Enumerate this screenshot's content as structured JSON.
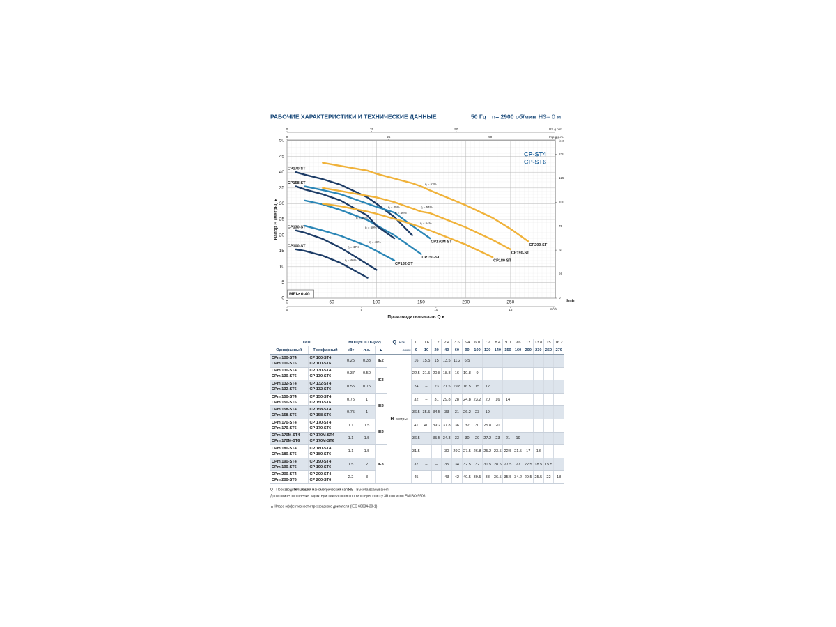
{
  "header": {
    "title": "РАБОЧИЕ ХАРАКТЕРИСТИКИ И ТЕХНИЧЕСКИЕ ДАННЫЕ",
    "freq": "50 Гц",
    "speed": "n= 2900 об/мин",
    "hs": "HS= 0 м"
  },
  "chart_data": {
    "type": "line",
    "badges": [
      "CP-ST4",
      "CP-ST6"
    ],
    "mei": "MEI≥ 0.40",
    "xlabel": "Производительность Q ▸",
    "ylabel": "Напор H (метры) ▸",
    "x_unit": "l/min",
    "xlim": [
      0,
      300
    ],
    "xticks": [
      0,
      50,
      100,
      150,
      200,
      250
    ],
    "ylim": [
      0,
      50
    ],
    "yticks": [
      0,
      5,
      10,
      15,
      20,
      25,
      30,
      35,
      40,
      45,
      50
    ],
    "y2_unit": "feet",
    "y2lim": [
      0,
      164.04
    ],
    "y2ticks": [
      0,
      25,
      50,
      75,
      100,
      125,
      150
    ],
    "top_axes": [
      {
        "unit": "US g.p.m.",
        "lim": [
          0,
          79.25
        ],
        "ticks": [
          0,
          25,
          50
        ]
      },
      {
        "unit": "Imp g.p.m.",
        "lim": [
          0,
          65.99
        ],
        "ticks": [
          0,
          25,
          50
        ]
      }
    ],
    "bottom_axis2": {
      "unit": "m³/h",
      "lim": [
        0,
        18
      ],
      "ticks": [
        0,
        5,
        10,
        15
      ]
    },
    "grid": true,
    "x": [
      10,
      20,
      40,
      60,
      90,
      100,
      120,
      140,
      150,
      160,
      200,
      230,
      250,
      270
    ],
    "series": [
      {
        "name": "CP100-ST",
        "color": "#1d3c66",
        "values": [
          15.5,
          15,
          13.5,
          11.2,
          6.5,
          null,
          null,
          null,
          null,
          null,
          null,
          null,
          null,
          null
        ]
      },
      {
        "name": "CP130-ST",
        "color": "#1d3c66",
        "values": [
          21.5,
          20.8,
          18.8,
          16,
          10.8,
          9,
          null,
          null,
          null,
          null,
          null,
          null,
          null,
          null
        ]
      },
      {
        "name": "CP132-ST",
        "color": "#2b86b6",
        "values": [
          null,
          23,
          21.5,
          19.8,
          16.5,
          15,
          12,
          null,
          null,
          null,
          null,
          null,
          null,
          null
        ]
      },
      {
        "name": "CP150-ST",
        "color": "#2b86b6",
        "values": [
          null,
          31,
          29.8,
          28,
          24.8,
          23.2,
          20,
          16,
          14,
          null,
          null,
          null,
          null,
          null
        ]
      },
      {
        "name": "CP158-ST",
        "color": "#1d3c66",
        "values": [
          35.5,
          34.5,
          33,
          31,
          26.2,
          23,
          19,
          null,
          null,
          null,
          null,
          null,
          null,
          null
        ]
      },
      {
        "name": "CP170-ST",
        "color": "#1d3c66",
        "values": [
          40,
          39.2,
          37.8,
          36,
          32,
          30,
          25.8,
          20,
          null,
          null,
          null,
          null,
          null,
          null
        ]
      },
      {
        "name": "CP170M-ST",
        "color": "#2b86b6",
        "values": [
          null,
          35.5,
          34.3,
          33,
          30,
          29,
          27.2,
          23,
          21,
          19,
          null,
          null,
          null,
          null
        ]
      },
      {
        "name": "CP180-ST",
        "color": "#f0b23a",
        "values": [
          null,
          null,
          30,
          29.2,
          27.5,
          26.8,
          25.2,
          23.5,
          22.5,
          21.5,
          17,
          13,
          null,
          null
        ]
      },
      {
        "name": "CP190-ST",
        "color": "#f0b23a",
        "values": [
          null,
          null,
          35,
          34,
          32.5,
          32,
          30.5,
          28.5,
          27.5,
          27,
          22.5,
          18.5,
          15.5,
          null
        ]
      },
      {
        "name": "CP200-ST",
        "color": "#f0b23a",
        "values": [
          null,
          null,
          43,
          42,
          40.5,
          39.5,
          38,
          36.5,
          35.5,
          34.2,
          29.5,
          25.5,
          22,
          18
        ]
      }
    ],
    "annotations": [
      "η = 53%",
      "η = 54%",
      "η = 54%",
      "η = 45%",
      "η = 46%",
      "η = 46%",
      "η = 50%",
      "η = 48%",
      "η = 47%",
      "η = 46%"
    ]
  },
  "table": {
    "header": {
      "type": "ТИП",
      "power": "МОЩНОСТЬ (P2)",
      "q": "Q",
      "m3h": "м³/ч",
      "lmin": "л/мин",
      "single": "Однофазный",
      "three": "Трехфазный",
      "kw": "кВт",
      "hp": "л.с.",
      "cls": "▲",
      "h": "H",
      "h_unit": "метры"
    },
    "flow_m3h": [
      "0",
      "0.6",
      "1.2",
      "2.4",
      "3.6",
      "5.4",
      "6.0",
      "7.2",
      "8.4",
      "9.0",
      "9.6",
      "12",
      "13.8",
      "15",
      "16.2"
    ],
    "flow_lmin": [
      "0",
      "10",
      "20",
      "40",
      "60",
      "90",
      "100",
      "120",
      "140",
      "150",
      "160",
      "200",
      "230",
      "250",
      "270"
    ],
    "classes": [
      "IE2",
      "IE3",
      "IE3",
      "IE3",
      "IE3"
    ],
    "rows": [
      {
        "single": [
          "CPm 100-ST4",
          "CPm 100-ST6"
        ],
        "three": [
          "CP 100-ST4",
          "CP 100-ST6"
        ],
        "kw": "0.25",
        "hp": "0.33",
        "head": [
          "16",
          "15.5",
          "15",
          "13.5",
          "11.2",
          "6.5",
          null,
          null,
          null,
          null,
          null,
          null,
          null,
          null,
          null
        ]
      },
      {
        "single": [
          "CPm 130-ST4",
          "CPm 130-ST6"
        ],
        "three": [
          "CP 130-ST4",
          "CP 130-ST6"
        ],
        "kw": "0.37",
        "hp": "0.50",
        "head": [
          "22.5",
          "21.5",
          "20.8",
          "18.8",
          "16",
          "10.8",
          "9",
          null,
          null,
          null,
          null,
          null,
          null,
          null,
          null
        ]
      },
      {
        "single": [
          "CPm 132-ST4",
          "CPm 132-ST6"
        ],
        "three": [
          "CP 132-ST4",
          "CP 132-ST6"
        ],
        "kw": "0.55",
        "hp": "0.75",
        "head": [
          "24",
          "–",
          "23",
          "21.5",
          "19.8",
          "16.5",
          "15",
          "12",
          null,
          null,
          null,
          null,
          null,
          null,
          null
        ]
      },
      {
        "single": [
          "CPm 150-ST4",
          "CPm 150-ST6"
        ],
        "three": [
          "CP 150-ST4",
          "CP 150-ST6"
        ],
        "kw": "0.75",
        "hp": "1",
        "head": [
          "32",
          "–",
          "31",
          "29.8",
          "28",
          "24.8",
          "23.2",
          "20",
          "16",
          "14",
          null,
          null,
          null,
          null,
          null
        ]
      },
      {
        "single": [
          "CPm 158-ST4",
          "CPm 158-ST6"
        ],
        "three": [
          "CP 158-ST4",
          "CP 158-ST6"
        ],
        "kw": "0.75",
        "hp": "1",
        "head": [
          "36.5",
          "35.5",
          "34.5",
          "33",
          "31",
          "26.2",
          "23",
          "19",
          null,
          null,
          null,
          null,
          null,
          null,
          null
        ]
      },
      {
        "single": [
          "CPm 170-ST4",
          "CPm 170-ST6"
        ],
        "three": [
          "CP 170-ST4",
          "CP 170-ST6"
        ],
        "kw": "1.1",
        "hp": "1.5",
        "head": [
          "41",
          "40",
          "39.2",
          "37.8",
          "36",
          "32",
          "30",
          "25.8",
          "20",
          null,
          null,
          null,
          null,
          null,
          null
        ]
      },
      {
        "single": [
          "CPm 170M-ST4",
          "CPm 170M-ST6"
        ],
        "three": [
          "CP 170M-ST4",
          "CP 170M-ST6"
        ],
        "kw": "1.1",
        "hp": "1.5",
        "head": [
          "36.5",
          "–",
          "35.5",
          "34.3",
          "33",
          "30",
          "29",
          "27.2",
          "23",
          "21",
          "19",
          null,
          null,
          null,
          null
        ]
      },
      {
        "single": [
          "CPm 180-ST4",
          "CPm 180-ST6"
        ],
        "three": [
          "CP 180-ST4",
          "CP 180-ST6"
        ],
        "kw": "1.1",
        "hp": "1.5",
        "head": [
          "31.5",
          "–",
          "–",
          "30",
          "29.2",
          "27.5",
          "26.8",
          "25.2",
          "23.5",
          "22.5",
          "21.5",
          "17",
          "13",
          null,
          null
        ]
      },
      {
        "single": [
          "CPm 190-ST4",
          "CPm 190-ST6"
        ],
        "three": [
          "CP 190-ST4",
          "CP 190-ST6"
        ],
        "kw": "1.5",
        "hp": "2",
        "head": [
          "37",
          "–",
          "–",
          "35",
          "34",
          "32.5",
          "32",
          "30.5",
          "28.5",
          "27.5",
          "27",
          "22.5",
          "18.5",
          "15.5",
          null
        ]
      },
      {
        "single": [
          "CPm 200-ST4",
          "CPm 200-ST6"
        ],
        "three": [
          "CP 200-ST4",
          "CP 200-ST6"
        ],
        "kw": "2.2",
        "hp": "3",
        "head": [
          "45",
          "–",
          "–",
          "43",
          "42",
          "40.5",
          "39.5",
          "38",
          "36.5",
          "35.5",
          "34.2",
          "29.5",
          "25.5",
          "22",
          "18"
        ]
      }
    ]
  },
  "notes": [
    "Q - Производительность",
    "H - Общий манометрический напор",
    "HS - Высота всасывания",
    "Допустимое отклонение характеристик насосов соответствует классу 3В согласно EN ISO 9906.",
    "▲ Класс эффективности трехфазного двигателя (IEC 60034-30-1)"
  ]
}
